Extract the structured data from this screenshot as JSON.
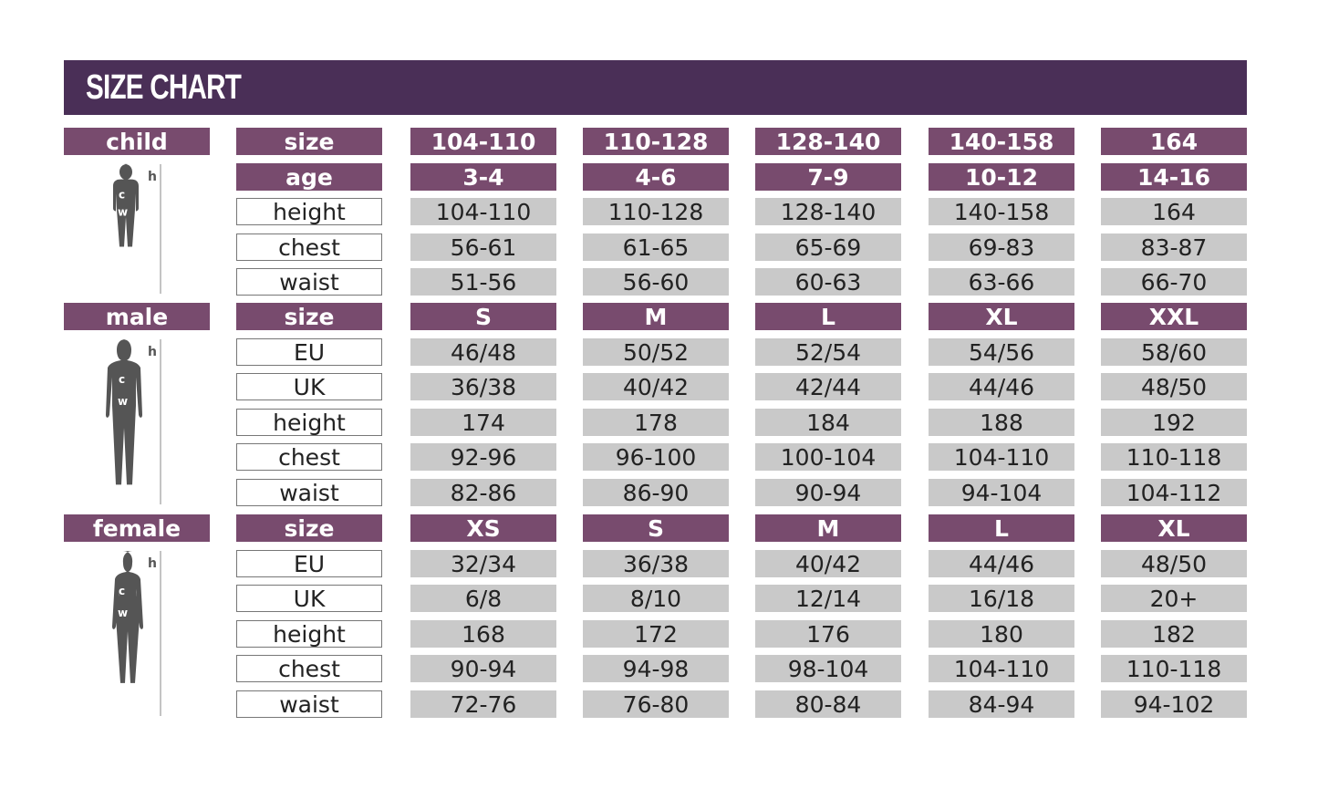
{
  "title": "SIZE CHART",
  "colors": {
    "header": "#4a2f57",
    "purple": "#784b6e",
    "gray": "#c9c9c9"
  },
  "sections": [
    {
      "name": "child",
      "icon": "child-silhouette-icon",
      "rows": [
        {
          "label": "size",
          "kind": "header",
          "values": [
            "104-110",
            "110-128",
            "128-140",
            "140-158",
            "164"
          ]
        },
        {
          "label": "age",
          "kind": "header",
          "values": [
            "3-4",
            "4-6",
            "7-9",
            "10-12",
            "14-16"
          ]
        },
        {
          "label": "height",
          "values": [
            "104-110",
            "110-128",
            "128-140",
            "140-158",
            "164"
          ]
        },
        {
          "label": "chest",
          "values": [
            "56-61",
            "61-65",
            "65-69",
            "69-83",
            "83-87"
          ]
        },
        {
          "label": "waist",
          "values": [
            "51-56",
            "56-60",
            "60-63",
            "63-66",
            "66-70"
          ]
        }
      ]
    },
    {
      "name": "male",
      "icon": "male-silhouette-icon",
      "rows": [
        {
          "label": "size",
          "kind": "header",
          "values": [
            "S",
            "M",
            "L",
            "XL",
            "XXL"
          ]
        },
        {
          "label": "EU",
          "values": [
            "46/48",
            "50/52",
            "52/54",
            "54/56",
            "58/60"
          ]
        },
        {
          "label": "UK",
          "values": [
            "36/38",
            "40/42",
            "42/44",
            "44/46",
            "48/50"
          ]
        },
        {
          "label": "height",
          "values": [
            "174",
            "178",
            "184",
            "188",
            "192"
          ]
        },
        {
          "label": "chest",
          "values": [
            "92-96",
            "96-100",
            "100-104",
            "104-110",
            "110-118"
          ]
        },
        {
          "label": "waist",
          "values": [
            "82-86",
            "86-90",
            "90-94",
            "94-104",
            "104-112"
          ]
        }
      ]
    },
    {
      "name": "female",
      "icon": "female-silhouette-icon",
      "rows": [
        {
          "label": "size",
          "kind": "header",
          "values": [
            "XS",
            "S",
            "M",
            "L",
            "XL"
          ]
        },
        {
          "label": "EU",
          "values": [
            "32/34",
            "36/38",
            "40/42",
            "44/46",
            "48/50"
          ]
        },
        {
          "label": "UK",
          "values": [
            "6/8",
            "8/10",
            "12/14",
            "16/18",
            "20+"
          ]
        },
        {
          "label": "height",
          "values": [
            "168",
            "172",
            "176",
            "180",
            "182"
          ]
        },
        {
          "label": "chest",
          "values": [
            "90-94",
            "94-98",
            "98-104",
            "104-110",
            "110-118"
          ]
        },
        {
          "label": "waist",
          "values": [
            "72-76",
            "76-80",
            "80-84",
            "84-94",
            "94-102"
          ]
        }
      ]
    }
  ],
  "figure_labels": {
    "h": "h",
    "c": "c",
    "w": "w"
  }
}
